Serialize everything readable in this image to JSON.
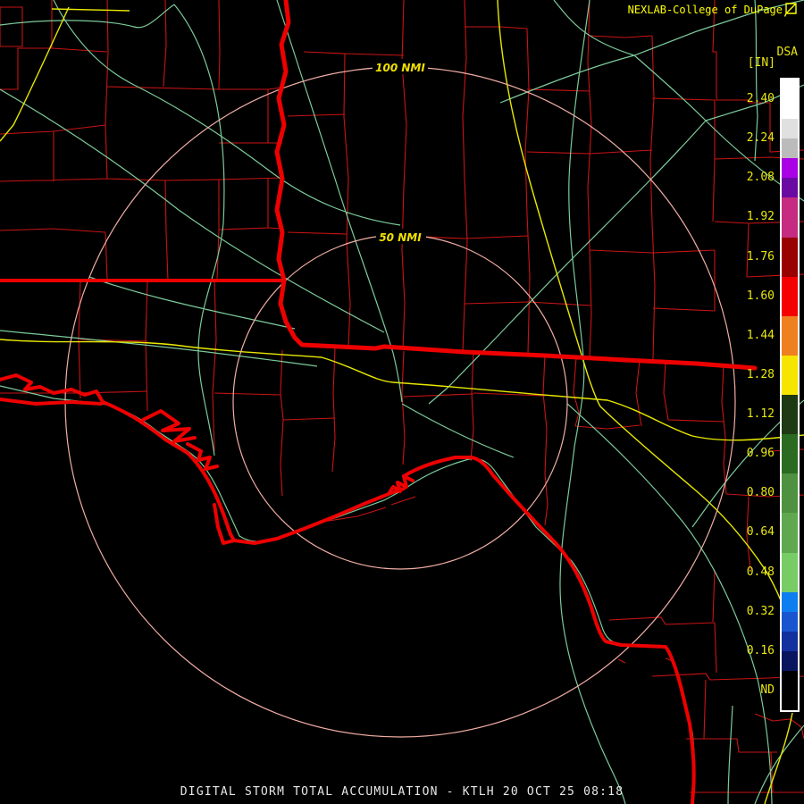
{
  "header": {
    "title": "NEXLAB-College of DuPage",
    "flag_icon": "cod-flag",
    "product": "DSA",
    "units": "[IN]"
  },
  "scale": {
    "labels": [
      "2.40",
      "2.24",
      "2.08",
      "1.92",
      "1.76",
      "1.60",
      "1.44",
      "1.28",
      "1.12",
      "0.96",
      "0.80",
      "0.64",
      "0.48",
      "0.32",
      "0.16",
      "ND"
    ],
    "segments": [
      {
        "color": "#ffffff",
        "u": 1
      },
      {
        "color": "#e0e0e0",
        "u": 0.5
      },
      {
        "color": "#bbbbbb",
        "u": 0.5
      },
      {
        "color": "#aa00e6",
        "u": 0.5
      },
      {
        "color": "#6b0aa2",
        "u": 0.5
      },
      {
        "color": "#c42b81",
        "u": 1
      },
      {
        "color": "#990000",
        "u": 1
      },
      {
        "color": "#f50000",
        "u": 1
      },
      {
        "color": "#ef8020",
        "u": 1
      },
      {
        "color": "#f5e500",
        "u": 1
      },
      {
        "color": "#1e3a12",
        "u": 1
      },
      {
        "color": "#2a6b21",
        "u": 1
      },
      {
        "color": "#4e9140",
        "u": 1
      },
      {
        "color": "#5fa84f",
        "u": 1
      },
      {
        "color": "#77cc66",
        "u": 1
      },
      {
        "color": "#0c7ef0",
        "u": 0.5
      },
      {
        "color": "#1a55d0",
        "u": 0.5
      },
      {
        "color": "#12309e",
        "u": 0.5
      },
      {
        "color": "#0a1560",
        "u": 0.5
      },
      {
        "color": "#000000",
        "u": 1
      }
    ]
  },
  "map": {
    "ring_labels": [
      {
        "text": "100 NMI"
      },
      {
        "text": "50 NMI"
      }
    ],
    "colors": {
      "county": "#c81414",
      "road": "#7ccb9b",
      "highway": "#e8e800",
      "border": "#ee0000",
      "ring": "#f2afa5",
      "label_yellow": "#f0e000",
      "background": "#000000"
    }
  },
  "footer": {
    "caption": "DIGITAL STORM TOTAL ACCUMULATION - KTLH 20 OCT 25 08:18"
  }
}
